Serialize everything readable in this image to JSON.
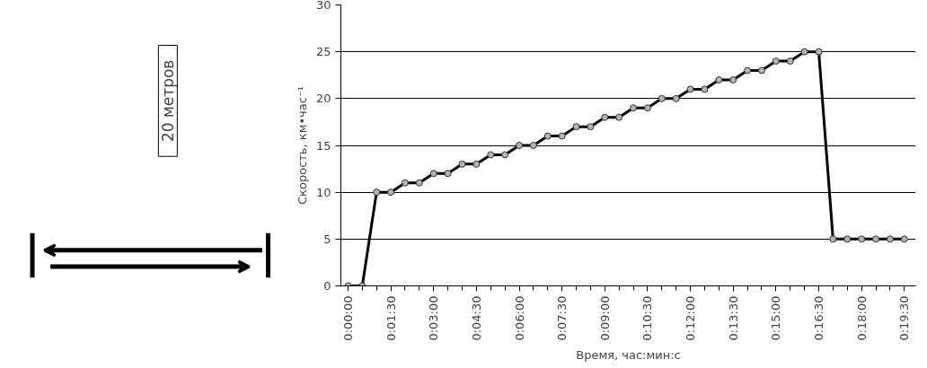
{
  "chart_data": {
    "type": "line",
    "xlabel": "Время, час:мин:с",
    "ylabel": "Скорость, км•час⁻¹",
    "annotations": [
      "20 метров"
    ],
    "x": [
      0,
      0.5,
      1,
      1.5,
      2,
      2.5,
      3,
      3.5,
      4,
      4.5,
      5,
      5.5,
      6,
      6.5,
      7,
      7.5,
      8,
      8.5,
      9,
      9.5,
      10,
      10.5,
      11,
      11.5,
      12,
      12.5,
      13,
      13.5,
      14,
      14.5,
      15,
      15.5,
      16,
      16.5,
      17,
      17.5,
      18,
      18.5,
      19,
      19.5
    ],
    "series": [
      {
        "color": "#000000",
        "values": [
          0,
          0,
          10,
          10,
          11,
          11,
          12,
          12,
          13,
          13,
          14,
          14,
          15,
          15,
          16,
          16,
          17,
          17,
          18,
          18,
          19,
          19,
          20,
          20,
          21,
          21,
          22,
          22,
          23,
          23,
          24,
          24,
          25,
          25,
          5,
          5,
          5,
          5,
          5,
          5
        ]
      }
    ],
    "xlim": [
      -0.25,
      19.9
    ],
    "xticks": [
      {
        "value": 0,
        "label": "0:00:00"
      },
      {
        "value": 1.5,
        "label": "0:01:30"
      },
      {
        "value": 3,
        "label": "0:03:00"
      },
      {
        "value": 4.5,
        "label": "0:04:30"
      },
      {
        "value": 6,
        "label": "0:06:00"
      },
      {
        "value": 7.5,
        "label": "0:07:30"
      },
      {
        "value": 9,
        "label": "0:09:00"
      },
      {
        "value": 10.5,
        "label": "0:10:30"
      },
      {
        "value": 12,
        "label": "0:12:00"
      },
      {
        "value": 13.5,
        "label": "0:13:30"
      },
      {
        "value": 15,
        "label": "0:15:00"
      },
      {
        "value": 16.5,
        "label": "0:16:30"
      },
      {
        "value": 18,
        "label": "0:18:00"
      },
      {
        "value": 19.5,
        "label": "0:19:30"
      }
    ],
    "ylim": [
      0,
      30
    ],
    "yticks": [
      0,
      5,
      10,
      15,
      20,
      25,
      30
    ],
    "grid": "y",
    "marker": "circle",
    "line_style": "solid"
  }
}
